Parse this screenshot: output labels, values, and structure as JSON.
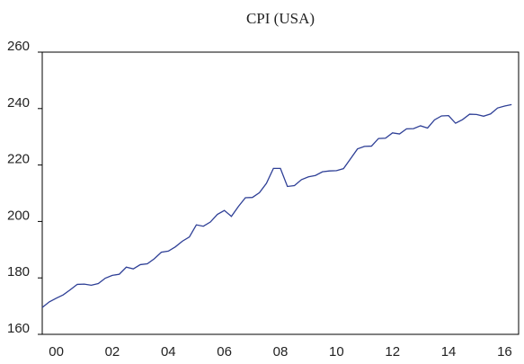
{
  "chart_data": {
    "type": "line",
    "title": "CPI (USA)",
    "x": [
      0,
      0.25,
      0.5,
      0.75,
      1,
      1.25,
      1.5,
      1.75,
      2,
      2.25,
      2.5,
      2.75,
      3,
      3.25,
      3.5,
      3.75,
      4,
      4.25,
      4.5,
      4.75,
      5,
      5.25,
      5.5,
      5.75,
      6,
      6.25,
      6.5,
      6.75,
      7,
      7.25,
      7.5,
      7.75,
      8,
      8.25,
      8.5,
      8.75,
      9,
      9.25,
      9.5,
      9.75,
      10,
      10.25,
      10.5,
      10.75,
      11,
      11.25,
      11.5,
      11.75,
      12,
      12.25,
      12.5,
      12.75,
      13,
      13.25,
      13.5,
      13.75,
      14,
      14.25,
      14.5,
      14.75,
      15,
      15.25,
      15.5,
      15.75,
      16,
      16.25,
      16.5,
      16.75
    ],
    "series": [
      {
        "color": "#2e3f96",
        "values": [
          169.5,
          171.5,
          172.8,
          174.0,
          175.8,
          177.7,
          177.8,
          177.4,
          178.0,
          179.9,
          180.9,
          181.3,
          183.8,
          183.2,
          184.7,
          185.0,
          186.8,
          189.1,
          189.5,
          191.0,
          193.0,
          194.5,
          198.8,
          198.3,
          199.8,
          202.5,
          203.9,
          201.8,
          205.3,
          208.4,
          208.5,
          210.2,
          213.5,
          218.8,
          218.8,
          212.4,
          212.7,
          214.8,
          215.8,
          216.3,
          217.6,
          217.9,
          218.0,
          218.7,
          222.2,
          225.7,
          226.6,
          226.7,
          229.4,
          229.5,
          231.4,
          231.0,
          232.8,
          232.9,
          233.9,
          233.1,
          236.0,
          237.4,
          237.5,
          234.8,
          236.1,
          238.0,
          237.9,
          237.3,
          238.1,
          240.2,
          240.9,
          241.4
        ]
      }
    ],
    "xlim": [
      0,
      17
    ],
    "xticks": [
      {
        "value": 0.5,
        "label": "00"
      },
      {
        "value": 2.5,
        "label": "02"
      },
      {
        "value": 4.5,
        "label": "04"
      },
      {
        "value": 6.5,
        "label": "06"
      },
      {
        "value": 8.5,
        "label": "08"
      },
      {
        "value": 10.5,
        "label": "10"
      },
      {
        "value": 12.5,
        "label": "12"
      },
      {
        "value": 14.5,
        "label": "14"
      },
      {
        "value": 16.5,
        "label": "16"
      }
    ],
    "ylim": [
      160,
      260
    ],
    "yticks": [
      160,
      180,
      200,
      220,
      240,
      260
    ]
  }
}
